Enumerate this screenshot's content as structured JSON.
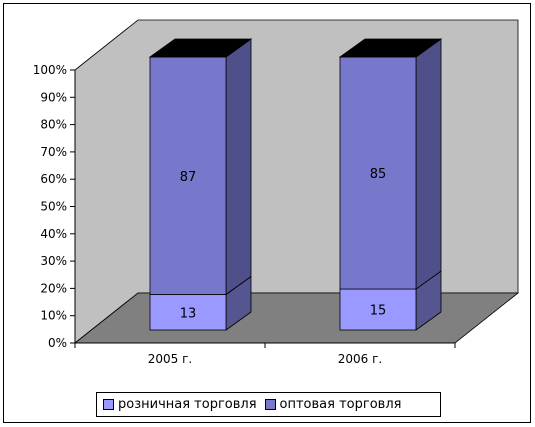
{
  "colors": {
    "retail": "#9999FF",
    "wholesale": "#7777CC",
    "wholesale_side": "#4F4F8A",
    "retail_side": "#55558F",
    "wall": "#C0C0C0",
    "floor": "#808080"
  },
  "chart_data": {
    "type": "bar",
    "stacked": "percent",
    "categories": [
      "2005 г.",
      "2006 г."
    ],
    "series": [
      {
        "name": "розничная торговля",
        "values": [
          13,
          15
        ]
      },
      {
        "name": "оптовая торговля",
        "values": [
          87,
          85
        ]
      }
    ],
    "ylim": [
      0,
      100
    ],
    "yticks": [
      "0%",
      "10%",
      "20%",
      "30%",
      "40%",
      "50%",
      "60%",
      "70%",
      "80%",
      "90%",
      "100%"
    ],
    "data_labels": true,
    "legend_position": "bottom",
    "style": "3d"
  }
}
